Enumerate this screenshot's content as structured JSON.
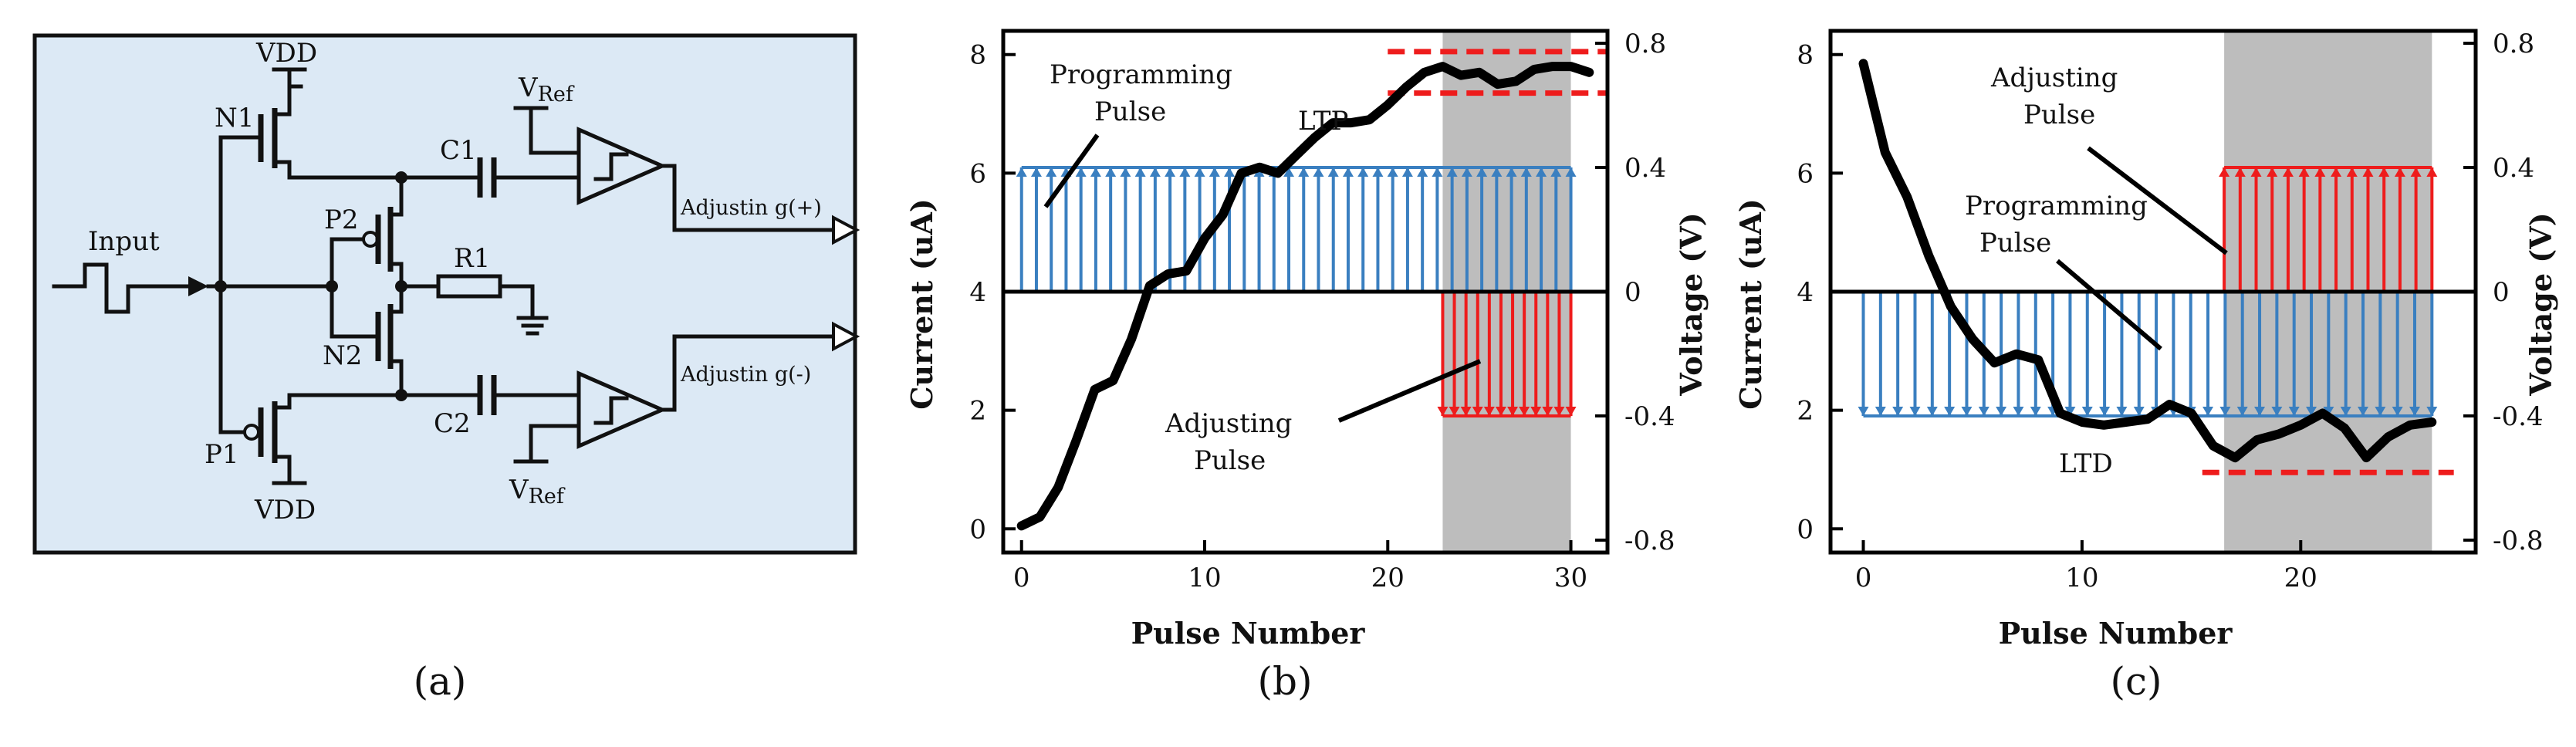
{
  "figure": {
    "panel_a": {
      "label": "(a)",
      "background": "#dce9f5",
      "labels": {
        "input": "Input",
        "vdd_top": "VDD",
        "vdd_bottom": "VDD",
        "n1": "N1",
        "n2": "N2",
        "p1": "P1",
        "p2": "P2",
        "c1": "C1",
        "c2": "C2",
        "r1": "R1",
        "vref_main": "V",
        "vref_sub": "Ref",
        "adj_pos": "Adjustin g(+)",
        "adj_neg": "Adjustin g(-)"
      }
    },
    "panel_b": {
      "label": "(b)",
      "xlabel": "Pulse Number",
      "ylabel": "Current (uA)",
      "ylabel_right": "Voltage (V)",
      "xticks": [
        "0",
        "10",
        "20",
        "30"
      ],
      "yticks": [
        "0",
        "2",
        "4",
        "6",
        "8"
      ],
      "yticks_right": [
        "-0.8",
        "-0.4",
        "0",
        "0.4",
        "0.8"
      ],
      "ann_programming": "Programming",
      "ann_programming2": "Pulse",
      "ann_adjusting": "Adjusting",
      "ann_adjusting2": "Pulse",
      "ann_ltp": "LTP"
    },
    "panel_c": {
      "label": "(c)",
      "xlabel": "Pulse Number",
      "ylabel": "Current (uA)",
      "ylabel_right": "Voltage (V)",
      "xticks": [
        "0",
        "10",
        "20"
      ],
      "yticks": [
        "0",
        "2",
        "4",
        "6",
        "8"
      ],
      "yticks_right": [
        "-0.8",
        "-0.4",
        "0",
        "0.4",
        "0.8"
      ],
      "ann_adjusting": "Adjusting",
      "ann_adjusting2": "Pulse",
      "ann_programming": "Programming",
      "ann_programming2": "Pulse",
      "ann_ltd": "LTD"
    },
    "colors": {
      "programming_pulse": "#3a7fc0",
      "adjusting_pulse": "#ee1c1c",
      "shade": "#bdbdbd",
      "curve": "#000000",
      "limit": "#ee1c1c"
    }
  },
  "chart_data": [
    {
      "type": "line",
      "panel": "b",
      "xlabel": "Pulse Number",
      "ylabel": "Current (uA)",
      "ylabel_right": "Voltage (V)",
      "xlim": [
        -1,
        32
      ],
      "ylim": [
        -0.4,
        8.4
      ],
      "ylim_right": [
        -0.84,
        0.84
      ],
      "xticks": [
        0,
        10,
        20,
        30
      ],
      "yticks": [
        0,
        2,
        4,
        6,
        8
      ],
      "yticks_right": [
        -0.8,
        -0.4,
        0,
        0.4,
        0.8
      ],
      "series": [
        {
          "x": [
            0,
            1,
            2,
            3,
            4,
            5,
            6,
            7,
            8,
            9,
            10,
            11,
            12,
            13,
            14,
            15,
            16,
            17,
            18,
            19,
            20,
            21,
            22,
            23,
            24,
            25,
            26,
            27,
            28,
            29,
            30,
            31
          ],
          "values": [
            0.05,
            0.2,
            0.7,
            1.5,
            2.35,
            2.5,
            3.2,
            4.1,
            4.3,
            4.35,
            4.9,
            5.3,
            6.0,
            6.1,
            6.0,
            6.3,
            6.6,
            6.85,
            6.85,
            6.9,
            7.15,
            7.45,
            7.7,
            7.8,
            7.65,
            7.7,
            7.5,
            7.55,
            7.75,
            7.8,
            7.8,
            7.7
          ]
        }
      ],
      "programming_pulses": {
        "x_start": 0,
        "x_end": 30,
        "count": 38,
        "voltage": 0.4
      },
      "adjusting_pulses": {
        "x_start": 23,
        "x_end": 30,
        "count": 12,
        "voltage": -0.4
      },
      "shaded_region_x": [
        23,
        30
      ],
      "limits_current": [
        7.35,
        8.05
      ],
      "limits_x": [
        20,
        32
      ]
    },
    {
      "type": "line",
      "panel": "c",
      "xlabel": "Pulse Number",
      "ylabel": "Current (uA)",
      "ylabel_right": "Voltage (V)",
      "xlim": [
        -1.5,
        28
      ],
      "ylim": [
        -0.4,
        8.4
      ],
      "ylim_right": [
        -0.84,
        0.84
      ],
      "xticks": [
        0,
        10,
        20
      ],
      "yticks": [
        0,
        2,
        4,
        6,
        8
      ],
      "yticks_right": [
        -0.8,
        -0.4,
        0,
        0.4,
        0.8
      ],
      "series": [
        {
          "x": [
            0,
            1,
            2,
            3,
            4,
            5,
            6,
            7,
            8,
            9,
            10,
            11,
            12,
            13,
            14,
            15,
            16,
            17,
            18,
            19,
            20,
            21,
            22,
            23,
            24,
            25,
            26
          ],
          "values": [
            7.85,
            6.35,
            5.6,
            4.6,
            3.75,
            3.2,
            2.8,
            2.95,
            2.85,
            1.95,
            1.8,
            1.75,
            1.8,
            1.85,
            2.1,
            1.95,
            1.4,
            1.2,
            1.5,
            1.6,
            1.75,
            1.95,
            1.7,
            1.2,
            1.55,
            1.75,
            1.8
          ]
        }
      ],
      "programming_pulses": {
        "x_start": 0,
        "x_end": 26,
        "count": 34,
        "voltage": -0.4
      },
      "adjusting_pulses": {
        "x_start": 16.5,
        "x_end": 26,
        "count": 14,
        "voltage": 0.4
      },
      "shaded_region_x": [
        16.5,
        26
      ],
      "limits_current": [
        0.95
      ],
      "limits_x": [
        15.5,
        27
      ]
    }
  ]
}
